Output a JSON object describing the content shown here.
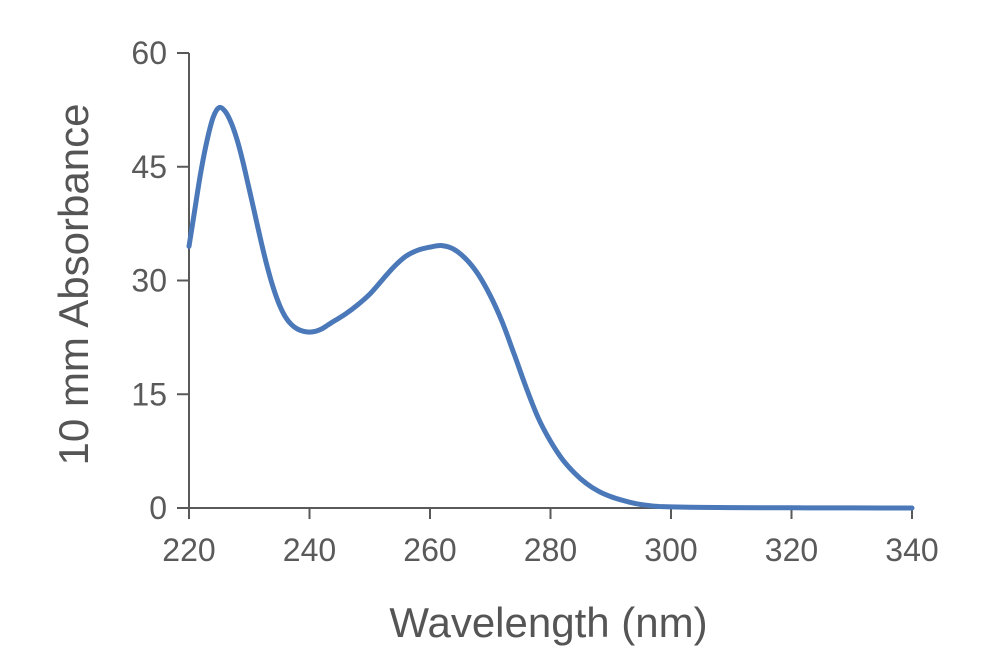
{
  "chart_data": {
    "type": "line",
    "title": "",
    "xlabel": "Wavelength (nm)",
    "ylabel": "10 mm Absorbance",
    "xlim": [
      220,
      340
    ],
    "ylim": [
      0,
      60
    ],
    "x_ticks": [
      220,
      240,
      260,
      280,
      300,
      320,
      340
    ],
    "y_ticks": [
      0,
      15,
      30,
      45,
      60
    ],
    "grid": false,
    "legend": "none",
    "series": [
      {
        "color": "#4a78b8",
        "x": [
          220,
          221,
          222,
          223,
          224,
          225,
          226,
          227,
          228,
          229,
          230,
          231,
          232,
          233,
          234,
          235,
          236,
          237,
          238,
          239,
          240,
          241,
          242,
          243,
          244,
          246,
          248,
          250,
          252,
          254,
          256,
          258,
          260,
          262,
          264,
          266,
          268,
          270,
          272,
          274,
          276,
          278,
          280,
          282,
          284,
          286,
          288,
          290,
          292,
          294,
          296,
          298,
          300,
          305,
          310,
          315,
          320,
          325,
          330,
          335,
          340
        ],
        "y": [
          34.5,
          39.5,
          44.5,
          48.5,
          51.5,
          52.8,
          52.3,
          50.8,
          48.5,
          45.5,
          42,
          38.5,
          35,
          31.8,
          29,
          26.8,
          25.2,
          24.2,
          23.6,
          23.3,
          23.2,
          23.3,
          23.6,
          24.1,
          24.6,
          25.6,
          26.8,
          28.2,
          30,
          31.8,
          33.2,
          34,
          34.4,
          34.6,
          34.1,
          32.8,
          30.8,
          28,
          24.5,
          20.2,
          15.8,
          11.8,
          8.8,
          6.4,
          4.6,
          3.2,
          2.2,
          1.5,
          1,
          0.6,
          0.35,
          0.2,
          0.15,
          0.08,
          0.05,
          0.03,
          0.02,
          0.01,
          0.01,
          0,
          0
        ]
      }
    ]
  }
}
